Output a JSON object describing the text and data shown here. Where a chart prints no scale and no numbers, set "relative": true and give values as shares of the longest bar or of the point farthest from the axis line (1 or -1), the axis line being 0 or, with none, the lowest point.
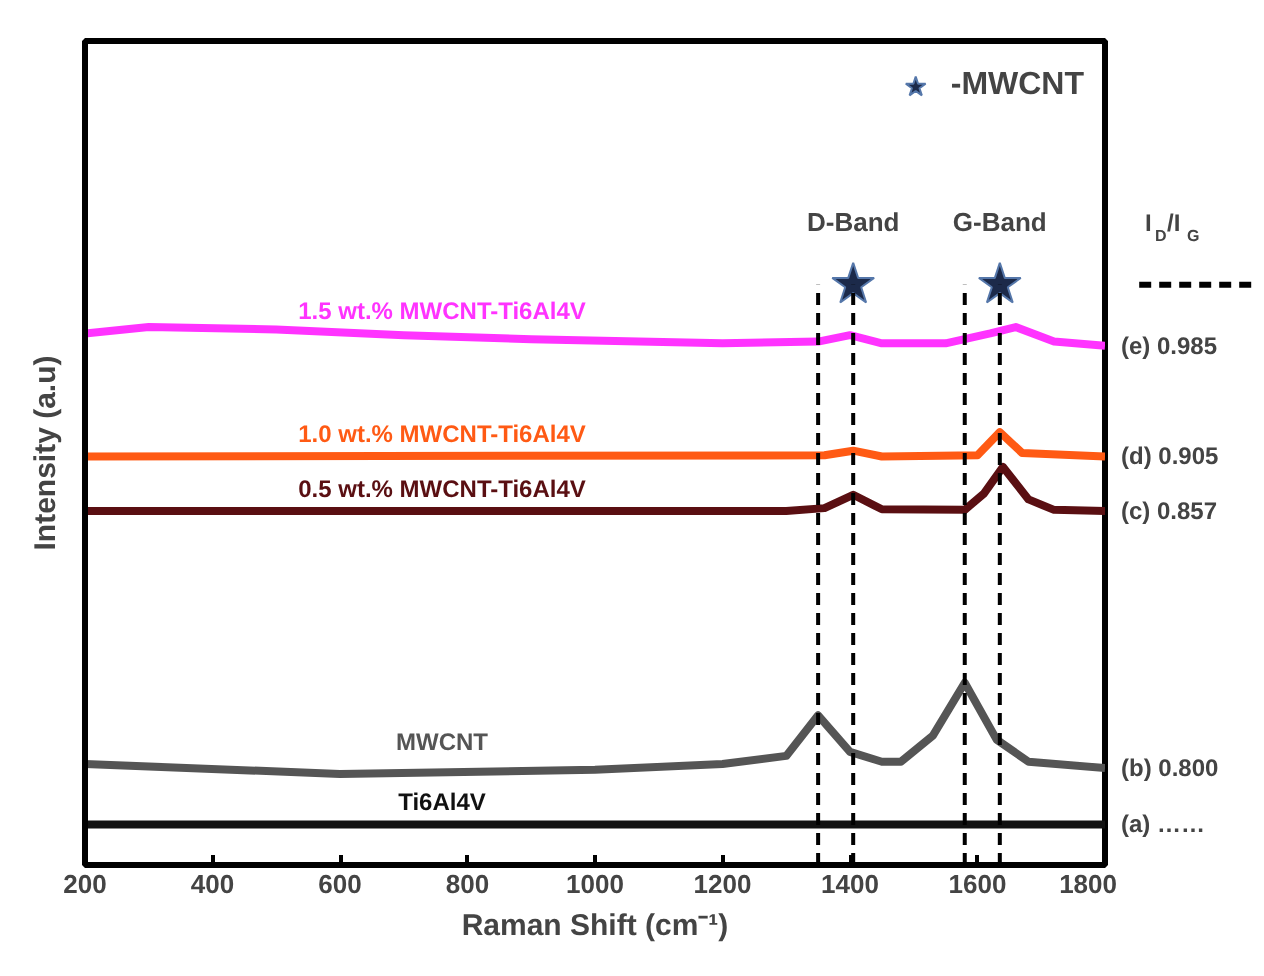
{
  "chart_data": {
    "type": "line",
    "relative": true,
    "xlabel": "Raman Shift (cm⁻¹)",
    "ylabel": "Intensity (a.u)",
    "xlim": [
      200,
      1800
    ],
    "xticks": [
      200,
      400,
      600,
      800,
      1000,
      1200,
      1400,
      1600,
      1800
    ],
    "grid": false,
    "legend": "top right",
    "marker": "none",
    "line_style": "solid",
    "series": [
      {
        "name": "Ti6Al4V",
        "color": "#111111",
        "x": [
          200,
          600,
          1000,
          1400,
          1800
        ],
        "values": [
          0.07,
          0.07,
          0.07,
          0.07,
          0.07
        ]
      },
      {
        "name": "MWCNT",
        "color": "#555555",
        "x": [
          200,
          600,
          1000,
          1200,
          1300,
          1350,
          1400,
          1450,
          1480,
          1530,
          1580,
          1630,
          1680,
          1800
        ],
        "values": [
          0.174,
          0.157,
          0.164,
          0.174,
          0.188,
          0.258,
          0.195,
          0.178,
          0.178,
          0.223,
          0.314,
          0.216,
          0.178,
          0.167
        ]
      },
      {
        "name": "0.5 wt.% MWCNT-Ti6Al4V",
        "color": "#5a0f12",
        "x": [
          200,
          1300,
          1360,
          1405,
          1450,
          1580,
          1610,
          1640,
          1680,
          1720,
          1800
        ],
        "values": [
          0.61,
          0.61,
          0.615,
          0.638,
          0.613,
          0.612,
          0.64,
          0.686,
          0.63,
          0.612,
          0.61
        ]
      },
      {
        "name": "1.0 wt.% MWCNT-Ti6Al4V",
        "color": "#ff5a14",
        "x": [
          200,
          1360,
          1405,
          1450,
          1600,
          1635,
          1670,
          1800
        ],
        "values": [
          0.704,
          0.706,
          0.714,
          0.704,
          0.706,
          0.746,
          0.71,
          0.704
        ]
      },
      {
        "name": "1.5 wt.% MWCNT-Ti6Al4V",
        "color": "#ff33ff",
        "x": [
          200,
          300,
          500,
          700,
          900,
          1200,
          1350,
          1400,
          1450,
          1550,
          1620,
          1660,
          1720,
          1800
        ],
        "values": [
          0.916,
          0.927,
          0.923,
          0.913,
          0.906,
          0.899,
          0.902,
          0.913,
          0.899,
          0.899,
          0.916,
          0.927,
          0.902,
          0.895
        ]
      },
      {
        "name": "-MWCNT",
        "type": "scatter",
        "marker": "star",
        "color": "#1c2a4a",
        "x": [
          1405,
          1635
        ],
        "values": [
          1.0,
          1.0
        ]
      }
    ],
    "ref_lines": [
      {
        "axis": "x",
        "value": 1405,
        "label": "D-Band",
        "color": "#000000",
        "line_style": "dashed"
      },
      {
        "axis": "x",
        "value": 1635,
        "label": "G-Band",
        "color": "#000000",
        "line_style": "dashed"
      },
      {
        "axis": "x",
        "value": 1350,
        "color": "#000000",
        "line_style": "dashed"
      },
      {
        "axis": "x",
        "value": 1580,
        "color": "#000000",
        "line_style": "dashed"
      }
    ],
    "annotations": [
      "I$_{D}$/I$_{G}$",
      "(e) 0.985",
      "(d) 0.905",
      "(c) 0.857",
      "(b)  0.800",
      "(a)   ……"
    ]
  }
}
